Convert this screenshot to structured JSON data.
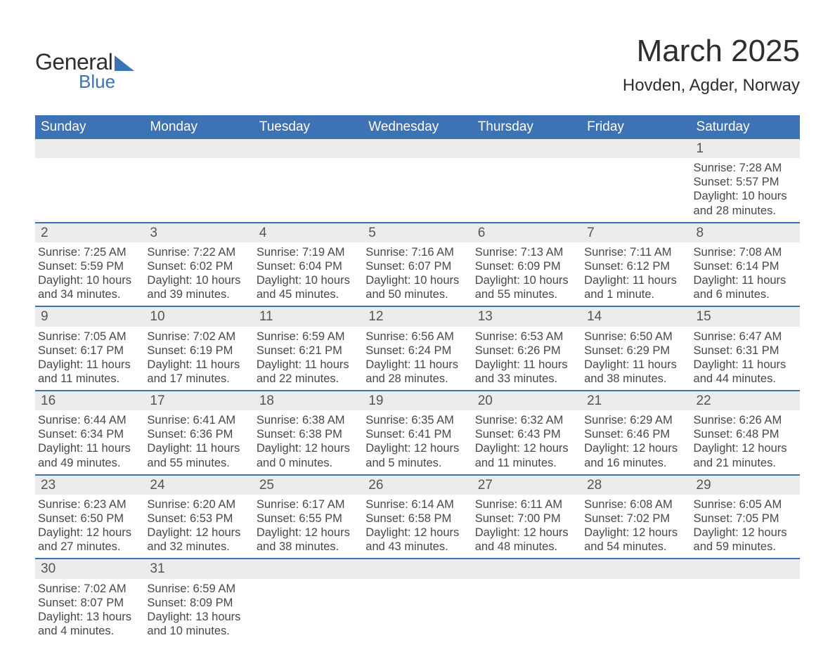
{
  "brand": {
    "word1": "General",
    "word2": "Blue"
  },
  "title": "March 2025",
  "location": "Hovden, Agder, Norway",
  "colors": {
    "header_bg": "#3d72b4",
    "header_text": "#ffffff",
    "daynum_bg": "#ececec",
    "text": "#424242",
    "rule": "#3d72b4",
    "brand_blue": "#3d72b4"
  },
  "days_of_week": [
    "Sunday",
    "Monday",
    "Tuesday",
    "Wednesday",
    "Thursday",
    "Friday",
    "Saturday"
  ],
  "weeks": [
    [
      {
        "blank": true
      },
      {
        "blank": true
      },
      {
        "blank": true
      },
      {
        "blank": true
      },
      {
        "blank": true
      },
      {
        "blank": true
      },
      {
        "n": "1",
        "sunrise": "Sunrise: 7:28 AM",
        "sunset": "Sunset: 5:57 PM",
        "dl1": "Daylight: 10 hours",
        "dl2": "and 28 minutes."
      }
    ],
    [
      {
        "n": "2",
        "sunrise": "Sunrise: 7:25 AM",
        "sunset": "Sunset: 5:59 PM",
        "dl1": "Daylight: 10 hours",
        "dl2": "and 34 minutes."
      },
      {
        "n": "3",
        "sunrise": "Sunrise: 7:22 AM",
        "sunset": "Sunset: 6:02 PM",
        "dl1": "Daylight: 10 hours",
        "dl2": "and 39 minutes."
      },
      {
        "n": "4",
        "sunrise": "Sunrise: 7:19 AM",
        "sunset": "Sunset: 6:04 PM",
        "dl1": "Daylight: 10 hours",
        "dl2": "and 45 minutes."
      },
      {
        "n": "5",
        "sunrise": "Sunrise: 7:16 AM",
        "sunset": "Sunset: 6:07 PM",
        "dl1": "Daylight: 10 hours",
        "dl2": "and 50 minutes."
      },
      {
        "n": "6",
        "sunrise": "Sunrise: 7:13 AM",
        "sunset": "Sunset: 6:09 PM",
        "dl1": "Daylight: 10 hours",
        "dl2": "and 55 minutes."
      },
      {
        "n": "7",
        "sunrise": "Sunrise: 7:11 AM",
        "sunset": "Sunset: 6:12 PM",
        "dl1": "Daylight: 11 hours",
        "dl2": "and 1 minute."
      },
      {
        "n": "8",
        "sunrise": "Sunrise: 7:08 AM",
        "sunset": "Sunset: 6:14 PM",
        "dl1": "Daylight: 11 hours",
        "dl2": "and 6 minutes."
      }
    ],
    [
      {
        "n": "9",
        "sunrise": "Sunrise: 7:05 AM",
        "sunset": "Sunset: 6:17 PM",
        "dl1": "Daylight: 11 hours",
        "dl2": "and 11 minutes."
      },
      {
        "n": "10",
        "sunrise": "Sunrise: 7:02 AM",
        "sunset": "Sunset: 6:19 PM",
        "dl1": "Daylight: 11 hours",
        "dl2": "and 17 minutes."
      },
      {
        "n": "11",
        "sunrise": "Sunrise: 6:59 AM",
        "sunset": "Sunset: 6:21 PM",
        "dl1": "Daylight: 11 hours",
        "dl2": "and 22 minutes."
      },
      {
        "n": "12",
        "sunrise": "Sunrise: 6:56 AM",
        "sunset": "Sunset: 6:24 PM",
        "dl1": "Daylight: 11 hours",
        "dl2": "and 28 minutes."
      },
      {
        "n": "13",
        "sunrise": "Sunrise: 6:53 AM",
        "sunset": "Sunset: 6:26 PM",
        "dl1": "Daylight: 11 hours",
        "dl2": "and 33 minutes."
      },
      {
        "n": "14",
        "sunrise": "Sunrise: 6:50 AM",
        "sunset": "Sunset: 6:29 PM",
        "dl1": "Daylight: 11 hours",
        "dl2": "and 38 minutes."
      },
      {
        "n": "15",
        "sunrise": "Sunrise: 6:47 AM",
        "sunset": "Sunset: 6:31 PM",
        "dl1": "Daylight: 11 hours",
        "dl2": "and 44 minutes."
      }
    ],
    [
      {
        "n": "16",
        "sunrise": "Sunrise: 6:44 AM",
        "sunset": "Sunset: 6:34 PM",
        "dl1": "Daylight: 11 hours",
        "dl2": "and 49 minutes."
      },
      {
        "n": "17",
        "sunrise": "Sunrise: 6:41 AM",
        "sunset": "Sunset: 6:36 PM",
        "dl1": "Daylight: 11 hours",
        "dl2": "and 55 minutes."
      },
      {
        "n": "18",
        "sunrise": "Sunrise: 6:38 AM",
        "sunset": "Sunset: 6:38 PM",
        "dl1": "Daylight: 12 hours",
        "dl2": "and 0 minutes."
      },
      {
        "n": "19",
        "sunrise": "Sunrise: 6:35 AM",
        "sunset": "Sunset: 6:41 PM",
        "dl1": "Daylight: 12 hours",
        "dl2": "and 5 minutes."
      },
      {
        "n": "20",
        "sunrise": "Sunrise: 6:32 AM",
        "sunset": "Sunset: 6:43 PM",
        "dl1": "Daylight: 12 hours",
        "dl2": "and 11 minutes."
      },
      {
        "n": "21",
        "sunrise": "Sunrise: 6:29 AM",
        "sunset": "Sunset: 6:46 PM",
        "dl1": "Daylight: 12 hours",
        "dl2": "and 16 minutes."
      },
      {
        "n": "22",
        "sunrise": "Sunrise: 6:26 AM",
        "sunset": "Sunset: 6:48 PM",
        "dl1": "Daylight: 12 hours",
        "dl2": "and 21 minutes."
      }
    ],
    [
      {
        "n": "23",
        "sunrise": "Sunrise: 6:23 AM",
        "sunset": "Sunset: 6:50 PM",
        "dl1": "Daylight: 12 hours",
        "dl2": "and 27 minutes."
      },
      {
        "n": "24",
        "sunrise": "Sunrise: 6:20 AM",
        "sunset": "Sunset: 6:53 PM",
        "dl1": "Daylight: 12 hours",
        "dl2": "and 32 minutes."
      },
      {
        "n": "25",
        "sunrise": "Sunrise: 6:17 AM",
        "sunset": "Sunset: 6:55 PM",
        "dl1": "Daylight: 12 hours",
        "dl2": "and 38 minutes."
      },
      {
        "n": "26",
        "sunrise": "Sunrise: 6:14 AM",
        "sunset": "Sunset: 6:58 PM",
        "dl1": "Daylight: 12 hours",
        "dl2": "and 43 minutes."
      },
      {
        "n": "27",
        "sunrise": "Sunrise: 6:11 AM",
        "sunset": "Sunset: 7:00 PM",
        "dl1": "Daylight: 12 hours",
        "dl2": "and 48 minutes."
      },
      {
        "n": "28",
        "sunrise": "Sunrise: 6:08 AM",
        "sunset": "Sunset: 7:02 PM",
        "dl1": "Daylight: 12 hours",
        "dl2": "and 54 minutes."
      },
      {
        "n": "29",
        "sunrise": "Sunrise: 6:05 AM",
        "sunset": "Sunset: 7:05 PM",
        "dl1": "Daylight: 12 hours",
        "dl2": "and 59 minutes."
      }
    ],
    [
      {
        "n": "30",
        "sunrise": "Sunrise: 7:02 AM",
        "sunset": "Sunset: 8:07 PM",
        "dl1": "Daylight: 13 hours",
        "dl2": "and 4 minutes."
      },
      {
        "n": "31",
        "sunrise": "Sunrise: 6:59 AM",
        "sunset": "Sunset: 8:09 PM",
        "dl1": "Daylight: 13 hours",
        "dl2": "and 10 minutes."
      },
      {
        "blank": true
      },
      {
        "blank": true
      },
      {
        "blank": true
      },
      {
        "blank": true
      },
      {
        "blank": true
      }
    ]
  ]
}
